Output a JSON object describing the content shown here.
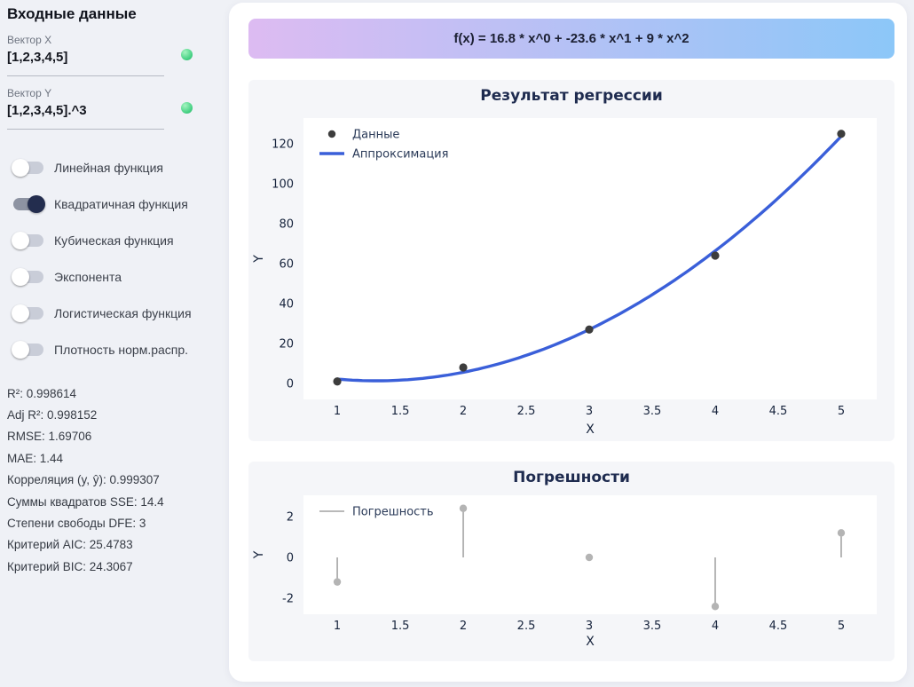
{
  "theme": {
    "page_background": "#eff1f6",
    "panel_background": "#ffffff",
    "card_background": "#f5f6f9",
    "toggle_on_knob": "#232d4e",
    "toggle_on_track": "#8d93a2",
    "toggle_off_track": "#c9cdd8",
    "status_green": "#45d183"
  },
  "sidebar": {
    "title": "Входные данные",
    "inputs": [
      {
        "label": "Вектор X",
        "value": "[1,2,3,4,5]",
        "status_color": "#45d183"
      },
      {
        "label": "Вектор Y",
        "value": "[1,2,3,4,5].^3",
        "status_color": "#45d183"
      }
    ],
    "toggles": [
      {
        "label": "Линейная функция",
        "on": false
      },
      {
        "label": "Квадратичная функция",
        "on": true
      },
      {
        "label": "Кубическая функция",
        "on": false
      },
      {
        "label": "Экспонента",
        "on": false
      },
      {
        "label": "Логистическая функция",
        "on": false
      },
      {
        "label": "Плотность норм.распр.",
        "on": false
      }
    ],
    "stats": [
      "R²: 0.998614",
      "Adj R²: 0.998152",
      "RMSE: 1.69706",
      "MAE: 1.44",
      "Корреляция (y, ŷ): 0.999307",
      "Суммы квадратов SSE: 14.4",
      "Степени свободы DFE: 3",
      "Критерий AIC: 25.4783",
      "Критерий BIC: 24.3067"
    ]
  },
  "formula_banner": {
    "text": "f(x) = 16.8 * x^0 + -23.6 * x^1 + 9 * x^2",
    "gradient_left": "#ddbbf2",
    "gradient_right": "#8cc7f8"
  },
  "chart_data": [
    {
      "type": "scatter",
      "title": "Результат регрессии",
      "xlabel": "X",
      "ylabel": "Y",
      "grid": false,
      "x_ticks": [
        1,
        1.5,
        2,
        2.5,
        3,
        3.5,
        4,
        4.5,
        5
      ],
      "y_ticks": [
        0,
        20,
        40,
        60,
        80,
        100,
        120
      ],
      "xlim": [
        0.732,
        5.282
      ],
      "ylim": [
        -8,
        132.9
      ],
      "legend": [
        {
          "label": "Данные",
          "marker": "dot",
          "color": "#3d3d3d"
        },
        {
          "label": "Аппроксимация",
          "marker": "line",
          "color": "#3a5fd9",
          "line_width": 3.4
        }
      ],
      "scatter": {
        "name": "Данные",
        "x": [
          1,
          2,
          3,
          4,
          5
        ],
        "y": [
          1,
          8,
          27,
          64,
          125
        ],
        "color": "#3d3d3d"
      },
      "fit": {
        "name": "Аппроксимация",
        "coeffs": [
          16.8,
          -23.6,
          9
        ],
        "x_range": [
          1,
          5
        ],
        "color": "#3a5fd9"
      }
    },
    {
      "type": "stem",
      "title": "Погрешности",
      "xlabel": "X",
      "ylabel": "Y",
      "grid": false,
      "x_ticks": [
        1,
        1.5,
        2,
        2.5,
        3,
        3.5,
        4,
        4.5,
        5
      ],
      "y_ticks": [
        -2,
        0,
        2
      ],
      "xlim": [
        0.732,
        5.282
      ],
      "ylim": [
        -2.78,
        3.04
      ],
      "legend": [
        {
          "label": "Погрешность",
          "marker": "line",
          "color": "#8f8f8f",
          "line_width": 1.3
        }
      ],
      "stems": {
        "name": "Погрешность",
        "x": [
          1,
          2,
          3,
          4,
          5
        ],
        "y": [
          -1.2,
          2.4,
          0,
          -2.4,
          1.2
        ],
        "line_color": "#8f8f8f",
        "marker_color": "#b4b4b4"
      }
    }
  ]
}
